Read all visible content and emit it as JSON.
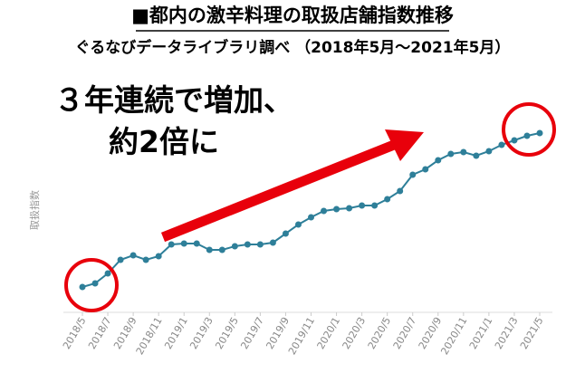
{
  "chart_data": {
    "type": "line",
    "title": "■都内の激辛料理の取扱店舗指数推移",
    "subtitle": "ぐるなびデータライブラリ調べ （2018年5月～2021年5月）",
    "y_label": "取扱指数",
    "annotations": [
      "３年連続で増加、",
      "約2倍に"
    ],
    "categories": [
      "2018/5",
      null,
      "2018/7",
      null,
      "2018/9",
      null,
      "2018/11",
      null,
      "2019/1",
      null,
      "2019/3",
      null,
      "2019/5",
      null,
      "2019/7",
      null,
      "2019/9",
      null,
      "2019/11",
      null,
      "2020/1",
      null,
      "2020/3",
      null,
      "2020/5",
      null,
      "2020/7",
      null,
      "2020/9",
      null,
      "2020/11",
      null,
      "2021/1",
      null,
      "2021/3",
      null,
      "2021/5"
    ],
    "series": [
      {
        "color": "#2e7f99",
        "values": [
          11.2,
          12.8,
          17.2,
          23.2,
          25.2,
          23.2,
          24.8,
          30,
          30.4,
          30.4,
          27.6,
          27.6,
          29.2,
          30,
          30,
          30.8,
          34.8,
          38.8,
          42,
          44.8,
          45.6,
          46,
          47.2,
          47.2,
          50,
          53.6,
          60.8,
          63.2,
          67.2,
          70,
          70.8,
          69.2,
          71.2,
          74,
          76,
          78,
          79.2
        ]
      }
    ],
    "ylim": [
      0,
      100
    ],
    "highlight_color": "#e8000b"
  }
}
